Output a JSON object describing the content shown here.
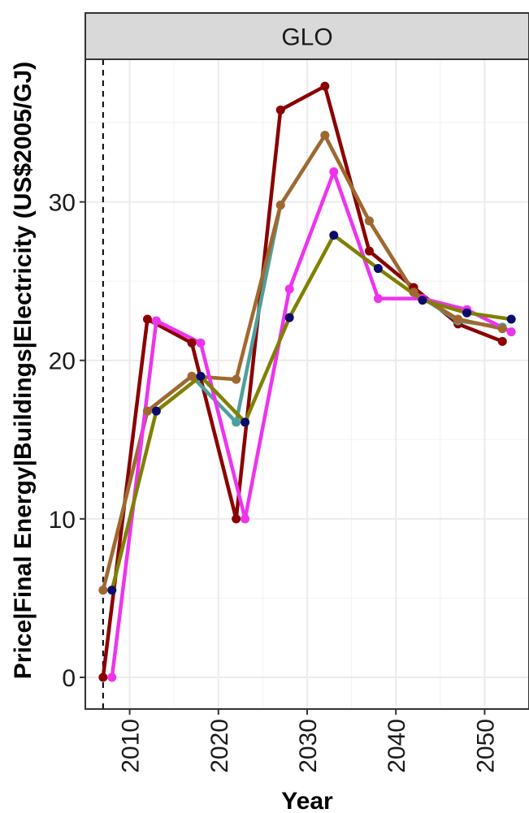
{
  "chart_data": {
    "type": "line",
    "panel": "GLO",
    "xlabel": "Year",
    "ylabel": "Price|Final Energy|Buildings|Electricity (US$2005/GJ)",
    "x_ticks": [
      2010,
      2020,
      2030,
      2040,
      2050
    ],
    "y_ticks": [
      0,
      10,
      20,
      30
    ],
    "xlim": [
      2005,
      2055
    ],
    "ylim": [
      -2,
      39
    ],
    "reference_line_x": 2007,
    "grid": true,
    "series": [
      {
        "color": "#8b0000",
        "x": [
          2007,
          2012,
          2017,
          2022,
          2027,
          2032,
          2037,
          2042,
          2047,
          2052
        ],
        "y": [
          0,
          22.6,
          21.1,
          10.0,
          35.8,
          37.3,
          26.9,
          24.6,
          22.3,
          21.2
        ]
      },
      {
        "color": "#4e9f9b",
        "x": [
          2007,
          2012,
          2017,
          2022,
          2027,
          2032,
          2037,
          2042,
          2047,
          2052
        ],
        "y": [
          5.5,
          16.8,
          19.0,
          16.1,
          29.8,
          34.2,
          28.8,
          24.3,
          22.5,
          22.1
        ]
      },
      {
        "color": "#a0682e",
        "x": [
          2007,
          2012,
          2017,
          2022,
          2027,
          2032,
          2037,
          2042,
          2047,
          2052
        ],
        "y": [
          5.5,
          16.8,
          19.0,
          18.8,
          29.8,
          34.2,
          28.8,
          24.3,
          22.6,
          22.0
        ]
      },
      {
        "color": "#ee33ee",
        "x": [
          2008,
          2013,
          2018,
          2023,
          2028,
          2033,
          2038,
          2043,
          2048,
          2053
        ],
        "y": [
          0,
          22.5,
          21.1,
          10.0,
          24.5,
          31.9,
          23.9,
          23.9,
          23.2,
          21.8
        ]
      },
      {
        "color": "#808000",
        "x": [
          2008,
          2013,
          2018,
          2023,
          2028,
          2033,
          2038,
          2043,
          2048,
          2053
        ],
        "y": [
          5.5,
          16.8,
          19.0,
          16.1,
          22.7,
          27.9,
          25.8,
          23.8,
          23.0,
          22.6
        ],
        "point_color": "#0b0b6b"
      }
    ]
  }
}
